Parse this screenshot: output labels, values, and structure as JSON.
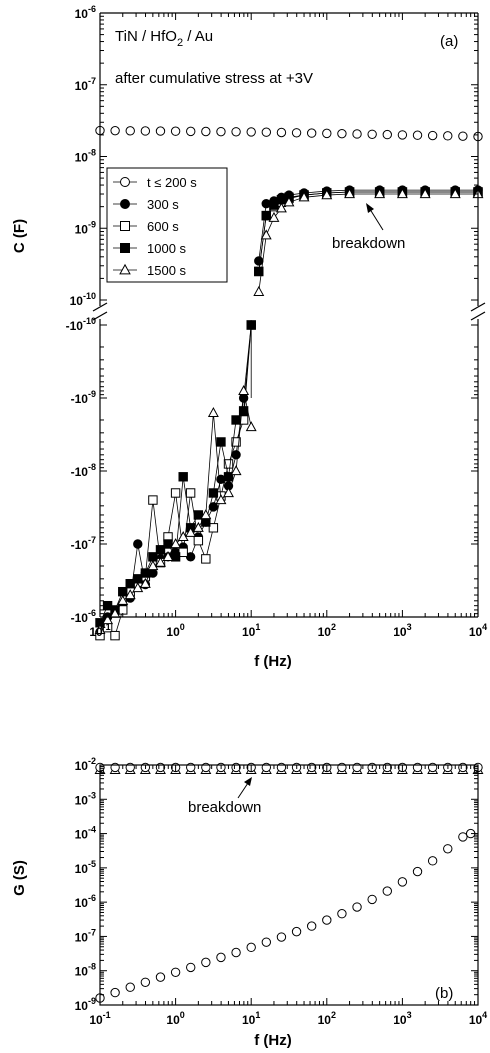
{
  "chart_data": [
    {
      "type": "scatter",
      "panel_label": "(a)",
      "annotations": {
        "device": "TiN / HfO",
        "device_sub": "2",
        "device_tail": " / Au",
        "stress": "after cumulative stress at +3V",
        "breakdown": "breakdown"
      },
      "xlabel": "f (Hz)",
      "ylabel": "C (F)",
      "xscale": "log",
      "yscale": "log, split axis (positive top, negative bottom)",
      "xlim": [
        0.1,
        10000
      ],
      "ylim_positive": [
        1e-10,
        1e-06
      ],
      "ylim_negative": [
        -1e-10,
        -1e-06
      ],
      "x_ticks": [
        {
          "b": "10",
          "e": "-1"
        },
        {
          "b": "10",
          "e": "0"
        },
        {
          "b": "10",
          "e": "1"
        },
        {
          "b": "10",
          "e": "2"
        },
        {
          "b": "10",
          "e": "3"
        },
        {
          "b": "10",
          "e": "4"
        }
      ],
      "y_ticks_positive": [
        {
          "b": "10",
          "e": "-6"
        },
        {
          "b": "10",
          "e": "-7"
        },
        {
          "b": "10",
          "e": "-8"
        },
        {
          "b": "10",
          "e": "-9"
        },
        {
          "b": "10",
          "e": "-10"
        }
      ],
      "y_ticks_negative": [
        {
          "b": "-10",
          "e": "-10"
        },
        {
          "b": "-10",
          "e": "-9"
        },
        {
          "b": "-10",
          "e": "-8"
        },
        {
          "b": "-10",
          "e": "-7"
        },
        {
          "b": "-10",
          "e": "-6"
        }
      ],
      "legend_position": "upper-left",
      "series": [
        {
          "name": "t ≤ 200 s",
          "marker": "circle-open",
          "line": false,
          "x": [
            0.1,
            0.1585,
            0.2512,
            0.3981,
            0.631,
            1,
            1.585,
            2.512,
            3.981,
            6.31,
            10,
            15.85,
            25.12,
            39.81,
            63.1,
            100,
            158.5,
            251.2,
            398.1,
            631,
            1000,
            1585,
            2512,
            3981,
            6310,
            10000
          ],
          "y": [
            2.3e-08,
            2.29e-08,
            2.28e-08,
            2.27e-08,
            2.26e-08,
            2.25e-08,
            2.24e-08,
            2.23e-08,
            2.22e-08,
            2.21e-08,
            2.2e-08,
            2.18e-08,
            2.16e-08,
            2.14e-08,
            2.12e-08,
            2.1e-08,
            2.08e-08,
            2.06e-08,
            2.04e-08,
            2.02e-08,
            2e-08,
            1.98e-08,
            1.96e-08,
            1.94e-08,
            1.92e-08,
            1.9e-08
          ]
        },
        {
          "name": "300 s",
          "marker": "circle-filled",
          "line": true,
          "x": [
            0.1,
            0.126,
            0.158,
            0.2,
            0.251,
            0.316,
            0.398,
            0.501,
            0.631,
            0.794,
            1,
            1.26,
            1.58,
            2,
            2.51,
            3.16,
            3.98,
            5.01,
            6.31,
            7.94,
            10,
            12.6,
            15.8,
            20,
            25.1,
            31.6,
            50,
            100,
            200,
            500,
            1000,
            2000,
            5000,
            10000
          ],
          "y": [
            -1.6e-06,
            -1e-06,
            -8.7e-07,
            -6.8e-07,
            -5.5e-07,
            -1e-07,
            -3.6e-07,
            -2.5e-07,
            -1.6e-07,
            -1.5e-07,
            -1.3e-07,
            -1.1e-07,
            -1.5e-07,
            -8e-08,
            -5e-08,
            -3.1e-08,
            -1.3e-08,
            -1.6e-08,
            -6e-09,
            -1e-09,
            -1e-10,
            3.5e-10,
            2.2e-09,
            2.4e-09,
            2.7e-09,
            2.9e-09,
            3.1e-09,
            3.3e-09,
            3.4e-09,
            3.4e-09,
            3.4e-09,
            3.4e-09,
            3.4e-09,
            3.4e-09
          ]
        },
        {
          "name": "600 s",
          "marker": "square-open",
          "line": true,
          "x": [
            0.1,
            0.126,
            0.158,
            0.2,
            0.251,
            0.316,
            0.398,
            0.501,
            0.631,
            0.794,
            1,
            1.26,
            1.58,
            2,
            2.51,
            3.16,
            3.98,
            5.01,
            6.31,
            7.94,
            10,
            12.6,
            15.8,
            20,
            25.1,
            31.6,
            50,
            100,
            200,
            500,
            1000,
            2000,
            5000,
            10000
          ],
          "y": [
            -1.8e-06,
            -1.4e-06,
            -1.8e-06,
            -8e-07,
            -4.5e-07,
            -3.5e-07,
            -2.8e-07,
            -2.5e-08,
            -1.8e-07,
            -8e-08,
            -2e-08,
            -1.3e-07,
            -2e-08,
            -9e-08,
            -1.6e-07,
            -6e-08,
            -2.2e-08,
            -8e-09,
            -4e-09,
            -2e-09,
            -1e-10,
            2.5e-10,
            1.5e-09,
            2e-09,
            2.3e-09,
            2.6e-09,
            2.9e-09,
            3.1e-09,
            3.2e-09,
            3.2e-09,
            3.2e-09,
            3.2e-09,
            3.2e-09,
            3.2e-09
          ]
        },
        {
          "name": "1000 s",
          "marker": "square-filled",
          "line": true,
          "x": [
            0.1,
            0.126,
            0.158,
            0.2,
            0.251,
            0.316,
            0.398,
            0.501,
            0.631,
            0.794,
            1,
            1.26,
            1.58,
            2,
            2.51,
            3.16,
            3.98,
            5.01,
            6.31,
            7.94,
            10,
            12.6,
            15.8,
            20,
            25.1,
            31.6,
            50,
            100,
            200,
            500,
            1000,
            2000,
            5000,
            10000
          ],
          "y": [
            -1.2e-06,
            -7e-07,
            -8e-07,
            -4.5e-07,
            -3.5e-07,
            -3e-07,
            -2.5e-07,
            -1.5e-07,
            -1.2e-07,
            -1e-07,
            -1.5e-07,
            -1.2e-08,
            -6e-08,
            -4e-08,
            -5e-08,
            -2e-08,
            -4e-09,
            -1.2e-08,
            -2e-09,
            -1.5e-09,
            -1e-10,
            2.5e-10,
            1.5e-09,
            2.1e-09,
            2.5e-09,
            2.7e-09,
            2.9e-09,
            3.1e-09,
            3.2e-09,
            3.2e-09,
            3.2e-09,
            3.2e-09,
            3.2e-09,
            3.2e-09
          ]
        },
        {
          "name": "1500 s",
          "marker": "triangle-open",
          "line": true,
          "x": [
            0.1,
            0.126,
            0.158,
            0.2,
            0.251,
            0.316,
            0.398,
            0.501,
            0.631,
            0.794,
            1,
            1.26,
            1.58,
            2,
            2.51,
            3.16,
            3.98,
            5.01,
            6.31,
            7.94,
            10,
            12.6,
            15.8,
            20,
            25.1,
            31.6,
            50,
            100,
            200,
            500,
            1000,
            2000,
            5000,
            10000
          ],
          "y": [
            -1.5e-06,
            -1.1e-06,
            -9e-07,
            -6e-07,
            -5e-07,
            -4e-07,
            -3.5e-07,
            -2e-07,
            -1.8e-07,
            -1.5e-07,
            -1e-07,
            -8e-08,
            -7e-08,
            -6e-08,
            -4e-08,
            -1.6e-09,
            -2.5e-08,
            -2e-08,
            -1e-08,
            -8e-10,
            -2.5e-09,
            1.3e-10,
            8e-10,
            1.4e-09,
            1.9e-09,
            2.3e-09,
            2.7e-09,
            2.9e-09,
            3e-09,
            3e-09,
            3e-09,
            3e-09,
            3e-09,
            3e-09
          ]
        }
      ]
    },
    {
      "type": "scatter",
      "panel_label": "(b)",
      "annotations": {
        "breakdown": "breakdown"
      },
      "xlabel": "f (Hz)",
      "ylabel": "G (S)",
      "xscale": "log",
      "yscale": "log",
      "xlim": [
        0.1,
        10000
      ],
      "ylim": [
        1e-09,
        0.01
      ],
      "x_ticks": [
        {
          "b": "10",
          "e": "-1"
        },
        {
          "b": "10",
          "e": "0"
        },
        {
          "b": "10",
          "e": "1"
        },
        {
          "b": "10",
          "e": "2"
        },
        {
          "b": "10",
          "e": "3"
        },
        {
          "b": "10",
          "e": "4"
        }
      ],
      "y_ticks": [
        {
          "b": "10",
          "e": "-2"
        },
        {
          "b": "10",
          "e": "-3"
        },
        {
          "b": "10",
          "e": "-4"
        },
        {
          "b": "10",
          "e": "-5"
        },
        {
          "b": "10",
          "e": "-6"
        },
        {
          "b": "10",
          "e": "-7"
        },
        {
          "b": "10",
          "e": "-8"
        },
        {
          "b": "10",
          "e": "-9"
        }
      ],
      "series": [
        {
          "marker": "circle-open",
          "x": [
            0.1,
            0.1585,
            0.2512,
            0.3981,
            0.631,
            1,
            1.585,
            2.512,
            3.981,
            6.31,
            10,
            15.85,
            25.12,
            39.81,
            63.1,
            100,
            158.5,
            251.2,
            398.1,
            631,
            1000,
            1585,
            2512,
            3981,
            6310,
            8000
          ],
          "y": [
            1.6e-09,
            2.3e-09,
            3.3e-09,
            4.6e-09,
            6.5e-09,
            9e-09,
            1.25e-08,
            1.75e-08,
            2.45e-08,
            3.4e-08,
            4.8e-08,
            6.8e-08,
            9.6e-08,
            1.38e-07,
            2e-07,
            3e-07,
            4.6e-07,
            7.2e-07,
            1.2e-06,
            2.1e-06,
            3.9e-06,
            7.8e-06,
            1.6e-05,
            3.6e-05,
            8e-05,
            0.0001
          ]
        },
        {
          "marker": "triangle-open",
          "x": [
            0.1,
            0.1585,
            0.2512,
            0.3981,
            0.631,
            1,
            1.585,
            2.512,
            3.981,
            6.31,
            10,
            15.85,
            25.12,
            39.81,
            63.1,
            100,
            158.5,
            251.2,
            398.1,
            631,
            1000,
            1585,
            2512,
            3981,
            6310,
            10000
          ],
          "y": [
            0.0072,
            0.0072,
            0.0072,
            0.0072,
            0.0072,
            0.0072,
            0.0072,
            0.0072,
            0.0072,
            0.0072,
            0.0072,
            0.0072,
            0.0072,
            0.0072,
            0.0072,
            0.0072,
            0.0072,
            0.0072,
            0.0072,
            0.0072,
            0.0072,
            0.0072,
            0.0072,
            0.0072,
            0.0072,
            0.0072
          ]
        },
        {
          "marker": "circle-open",
          "x": [
            0.1,
            0.1585,
            0.2512,
            0.3981,
            0.631,
            1,
            1.585,
            2.512,
            3.981,
            6.31,
            10,
            15.85,
            25.12,
            39.81,
            63.1,
            100,
            158.5,
            251.2,
            398.1,
            631,
            1000,
            1585,
            2512,
            3981,
            6310,
            10000
          ],
          "y": [
            0.0085,
            0.0085,
            0.0085,
            0.0085,
            0.0085,
            0.0085,
            0.0085,
            0.0085,
            0.0085,
            0.0085,
            0.0085,
            0.0085,
            0.0085,
            0.0085,
            0.0085,
            0.0085,
            0.0085,
            0.0085,
            0.0085,
            0.0085,
            0.0085,
            0.0085,
            0.0085,
            0.0085,
            0.0085,
            0.0085
          ]
        }
      ]
    }
  ]
}
